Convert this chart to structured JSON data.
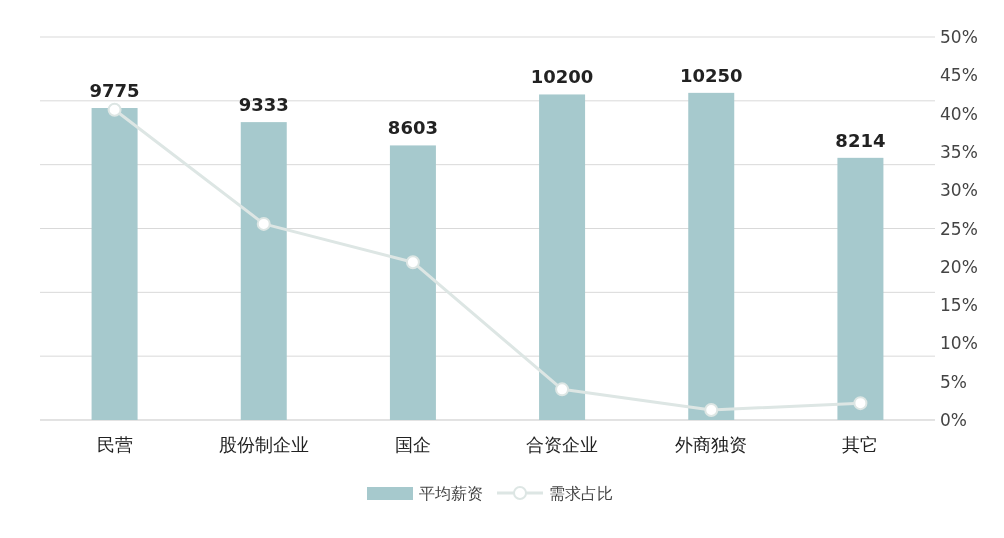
{
  "chart_data": {
    "type": "bar",
    "categories": [
      "民营",
      "股份制企业",
      "国企",
      "合资企业",
      "外商独资",
      "其它"
    ],
    "series": [
      {
        "name": "平均薪资",
        "color": "#a6c9cd",
        "values": [
          9775,
          9333,
          8603,
          10200,
          10250,
          8214
        ],
        "value_labels": [
          "9775",
          "9333",
          "8603",
          "10200",
          "10250",
          "8214"
        ]
      },
      {
        "name": "需求占比",
        "type": "line",
        "axis": "y2",
        "color": "#dde6e4",
        "values": [
          40.5,
          25.6,
          20.6,
          4.0,
          1.3,
          2.2
        ]
      }
    ],
    "ylim": [
      0,
      12000
    ],
    "yticks": [
      {
        "value": 0,
        "label": null
      },
      {
        "value": 2000,
        "label": null
      },
      {
        "value": 4000,
        "label": null
      },
      {
        "value": 6000,
        "label": null
      },
      {
        "value": 8000,
        "label": null
      },
      {
        "value": 10000,
        "label": null
      },
      {
        "value": 12000,
        "label": null
      }
    ],
    "y2lim": [
      0,
      50
    ],
    "y2ticks": [
      {
        "value": 0,
        "label": "0%"
      },
      {
        "value": 5,
        "label": "5%"
      },
      {
        "value": 10,
        "label": "10%"
      },
      {
        "value": 15,
        "label": "15%"
      },
      {
        "value": 20,
        "label": "20%"
      },
      {
        "value": 25,
        "label": "25%"
      },
      {
        "value": 30,
        "label": "30%"
      },
      {
        "value": 35,
        "label": "35%"
      },
      {
        "value": 40,
        "label": "40%"
      },
      {
        "value": 45,
        "label": "45%"
      },
      {
        "value": 50,
        "label": "50%"
      }
    ],
    "grid": "y",
    "legend": "bottom",
    "marker": "circle",
    "line_style": "solid"
  }
}
